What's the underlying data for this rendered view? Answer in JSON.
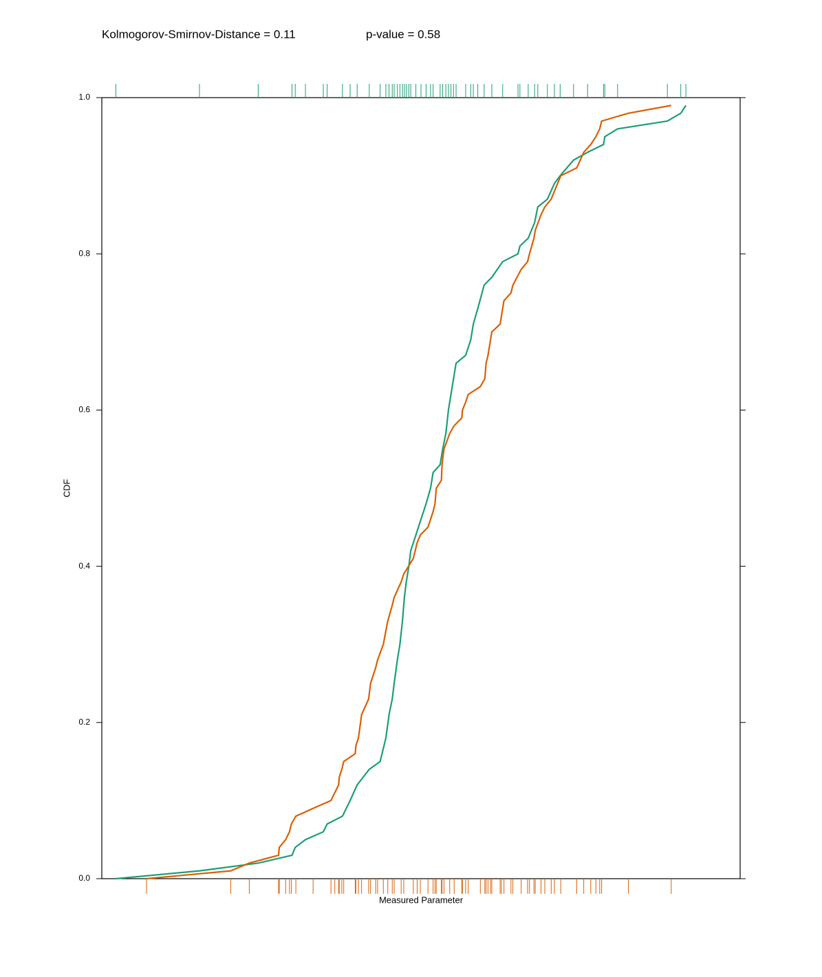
{
  "chart_data": {
    "type": "ecdf",
    "title": "Kolmogorov-Smirnov-Distance = 0.11",
    "subtitle": "p-value = 0.58",
    "x_label": "Measured Parameter",
    "y_label": "CDF",
    "xlim": [
      0,
      100
    ],
    "ylim": [
      0,
      1
    ],
    "yticks": [
      {
        "value": 0,
        "label": "0.0"
      },
      0.2,
      0.4,
      0.6,
      0.8,
      {
        "value": 1,
        "label": "1.0"
      }
    ],
    "series": [
      {
        "color": "#1b9e77",
        "rug": "top",
        "x": [
          2.2,
          15.3,
          24.5,
          29.8,
          30.3,
          31.9,
          34.7,
          35.3,
          37.7,
          38.9,
          40.0,
          41.9,
          43.6,
          44.5,
          45.0,
          45.5,
          45.8,
          46.3,
          46.7,
          47.1,
          47.4,
          47.7,
          48.1,
          48.4,
          49.2,
          50.0,
          50.8,
          51.5,
          51.9,
          53.0,
          53.4,
          53.9,
          54.3,
          54.7,
          55.1,
          55.5,
          57.0,
          57.8,
          58.2,
          58.9,
          59.9,
          61.1,
          62.8,
          65.2,
          65.5,
          66.8,
          67.8,
          68.3,
          69.8,
          70.9,
          71.8,
          73.9,
          76.1,
          78.6,
          78.8,
          80.8,
          88.6,
          90.7,
          91.5
        ],
        "y": [
          0.0,
          0.01,
          0.02,
          0.03,
          0.04,
          0.05,
          0.06,
          0.07,
          0.08,
          0.1,
          0.12,
          0.14,
          0.15,
          0.18,
          0.21,
          0.23,
          0.25,
          0.28,
          0.3,
          0.33,
          0.36,
          0.38,
          0.4,
          0.42,
          0.44,
          0.46,
          0.48,
          0.5,
          0.52,
          0.53,
          0.55,
          0.57,
          0.6,
          0.62,
          0.64,
          0.66,
          0.67,
          0.69,
          0.71,
          0.73,
          0.76,
          0.77,
          0.79,
          0.8,
          0.81,
          0.82,
          0.84,
          0.86,
          0.87,
          0.89,
          0.9,
          0.92,
          0.93,
          0.94,
          0.95,
          0.96,
          0.97,
          0.98,
          0.99
        ]
      },
      {
        "color": "#d95f02",
        "rug": "bottom",
        "x": [
          7.0,
          20.2,
          23.1,
          27.7,
          27.8,
          28.8,
          29.4,
          29.7,
          30.4,
          33.1,
          35.9,
          36.5,
          37.1,
          37.2,
          37.6,
          37.9,
          39.7,
          39.8,
          40.2,
          40.7,
          41.8,
          42.1,
          42.9,
          43.2,
          44.1,
          44.8,
          45.5,
          45.8,
          46.9,
          47.3,
          48.8,
          49.4,
          49.9,
          51.1,
          51.9,
          52.2,
          52.4,
          53.2,
          53.3,
          53.6,
          54.5,
          55.2,
          56.4,
          56.5,
          57.0,
          57.4,
          59.3,
          60.0,
          60.2,
          60.5,
          60.9,
          61.1,
          62.4,
          62.6,
          63.0,
          64.1,
          64.4,
          65.7,
          66.7,
          67.0,
          67.7,
          67.9,
          68.8,
          69.4,
          70.4,
          70.9,
          71.9,
          74.4,
          75.5,
          76.6,
          77.4,
          78.0,
          78.3,
          82.5,
          89.2
        ],
        "y": [
          0.0,
          0.01,
          0.02,
          0.03,
          0.04,
          0.05,
          0.06,
          0.07,
          0.08,
          0.09,
          0.1,
          0.11,
          0.12,
          0.13,
          0.14,
          0.15,
          0.16,
          0.17,
          0.18,
          0.21,
          0.23,
          0.25,
          0.27,
          0.28,
          0.3,
          0.33,
          0.35,
          0.36,
          0.38,
          0.39,
          0.41,
          0.43,
          0.44,
          0.45,
          0.47,
          0.48,
          0.5,
          0.51,
          0.53,
          0.55,
          0.57,
          0.58,
          0.59,
          0.6,
          0.61,
          0.62,
          0.63,
          0.64,
          0.66,
          0.67,
          0.69,
          0.7,
          0.71,
          0.72,
          0.74,
          0.75,
          0.76,
          0.78,
          0.79,
          0.8,
          0.82,
          0.83,
          0.85,
          0.86,
          0.87,
          0.88,
          0.9,
          0.91,
          0.93,
          0.94,
          0.95,
          0.96,
          0.97,
          0.98,
          0.99
        ]
      }
    ]
  }
}
